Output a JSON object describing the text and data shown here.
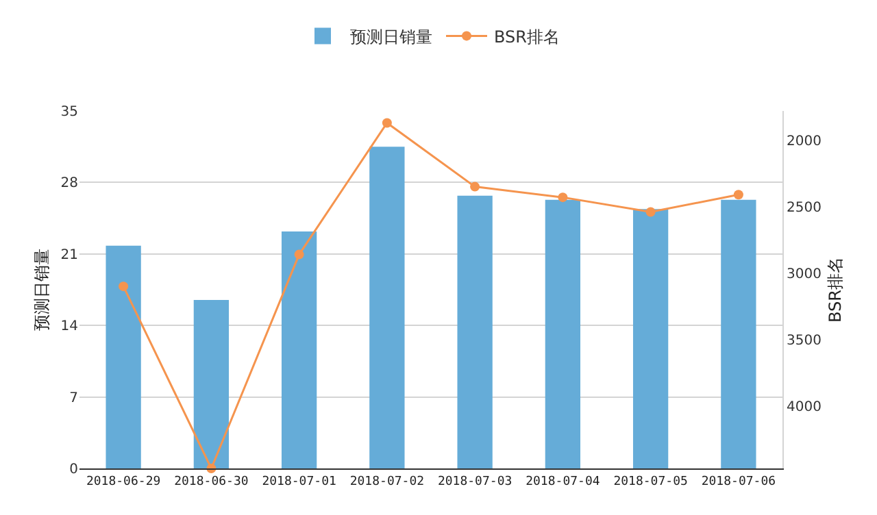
{
  "chart_data": {
    "type": "bar",
    "categories": [
      "2018-06-29",
      "2018-06-30",
      "2018-07-01",
      "2018-07-02",
      "2018-07-03",
      "2018-07-04",
      "2018-07-05",
      "2018-07-06"
    ],
    "series": [
      {
        "name": "预测日销量",
        "color": "#65acd8",
        "values": [
          21.8,
          16.5,
          23.2,
          31.5,
          26.7,
          26.3,
          25.4,
          26.3
        ]
      },
      {
        "name": "BSR排名",
        "type": "line",
        "axis": "y2",
        "color": "#f5944e",
        "marker": "circle",
        "values": [
          3100,
          4470,
          2860,
          1870,
          2350,
          2430,
          2540,
          2410
        ]
      }
    ],
    "ylabel": "预测日销量",
    "y2label": "BSR排名",
    "ylim": [
      0,
      35
    ],
    "yticks": [
      0,
      7,
      14,
      21,
      28,
      35
    ],
    "y2lim": [
      4470,
      1780
    ],
    "y2ticks": [
      2000,
      2500,
      3000,
      3500,
      4000
    ],
    "grid": "y",
    "legend": "top"
  }
}
